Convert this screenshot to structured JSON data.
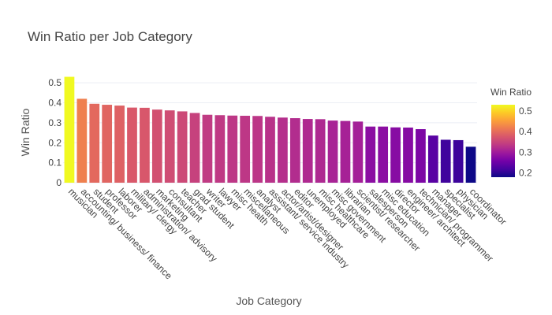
{
  "chart_data": {
    "type": "bar",
    "title": "Win Ratio per Job Category",
    "xlabel": "Job Category",
    "ylabel": "Win Ratio",
    "ylim": [
      0,
      0.54
    ],
    "yticks": [
      0,
      0.1,
      0.2,
      0.3,
      0.4,
      0.5
    ],
    "yticklabels": [
      "0",
      "0.1",
      "0.2",
      "0.3",
      "0.4",
      "0.5"
    ],
    "grid": true,
    "categories": [
      "musician",
      "accounting/ business/ finance",
      "student",
      "professor",
      "laborer",
      "military/ clergy",
      "administration/ advisory",
      "marketing",
      "consultant",
      "teacher",
      "grad student",
      "writer",
      "lawyer",
      "misc health",
      "miscellaneous",
      "analyst",
      "assistant/ service industry",
      "actor/artist/designer",
      "editor",
      "unemployed",
      "misc healthcare",
      "misc government",
      "librarian",
      "scientist/ researcher",
      "salesperson",
      "misc education",
      "director",
      "engineer/ architect",
      "technician/ programmer",
      "manager",
      "specialist",
      "physician",
      "coordinator"
    ],
    "values": [
      0.53,
      0.42,
      0.395,
      0.39,
      0.386,
      0.376,
      0.375,
      0.366,
      0.362,
      0.357,
      0.349,
      0.34,
      0.338,
      0.336,
      0.335,
      0.334,
      0.33,
      0.326,
      0.323,
      0.319,
      0.318,
      0.311,
      0.309,
      0.306,
      0.281,
      0.281,
      0.277,
      0.276,
      0.268,
      0.236,
      0.215,
      0.213,
      0.18
    ],
    "colorscale": "plasma",
    "colorbar": {
      "title": "Win Ratio",
      "range": [
        0.18,
        0.53
      ],
      "ticks": [
        0.2,
        0.3,
        0.4,
        0.5
      ],
      "ticklabels": [
        "0.2",
        "0.3",
        "0.4",
        "0.5"
      ]
    }
  }
}
